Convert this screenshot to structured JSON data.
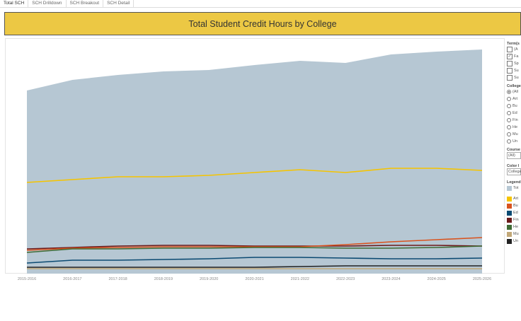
{
  "tabs": [
    "Total SCH",
    "SCH Drilldown",
    "SCH Breakout",
    "SCH Detail"
  ],
  "title": "Total Student Credit Hours by College",
  "filters": {
    "term": {
      "label": "Term(s",
      "items": [
        {
          "label": "(A",
          "checked": false
        },
        {
          "label": "Fa",
          "checked": true
        },
        {
          "label": "Sp",
          "checked": false
        },
        {
          "label": "Su",
          "checked": false
        },
        {
          "label": "Su",
          "checked": false
        }
      ]
    },
    "college": {
      "label": "College",
      "items": [
        {
          "label": "(All",
          "selected": true
        },
        {
          "label": "Art",
          "selected": false
        },
        {
          "label": "Bu",
          "selected": false
        },
        {
          "label": "Ed",
          "selected": false
        },
        {
          "label": "Fin",
          "selected": false
        },
        {
          "label": "He",
          "selected": false
        },
        {
          "label": "Mu",
          "selected": false
        },
        {
          "label": "Un",
          "selected": false
        }
      ]
    },
    "course": {
      "label": "Course",
      "value": "(All)"
    },
    "color": {
      "label": "Color l",
      "value": "College"
    }
  },
  "legend": {
    "label": "Legend",
    "items": [
      {
        "label": "Tot",
        "color": "#b6c7d3"
      },
      {
        "label": "Art",
        "color": "#f5c400"
      },
      {
        "label": "Bu",
        "color": "#d9531e"
      },
      {
        "label": "Ed",
        "color": "#0b4a72"
      },
      {
        "label": "Fin",
        "color": "#6b1a1a"
      },
      {
        "label": "He",
        "color": "#3f6b35"
      },
      {
        "label": "Mu",
        "color": "#c2a878"
      },
      {
        "label": "Un",
        "color": "#222222"
      }
    ]
  },
  "chart_data": {
    "type": "area",
    "categories": [
      "2015-2016",
      "2016-2017",
      "2017-2018",
      "2018-2019",
      "2019-2020",
      "2020-2021",
      "2021-2022",
      "2022-2023",
      "2023-2024",
      "2024-2025",
      "2025-2026"
    ],
    "y_axis_shown": false,
    "grid": false,
    "legend_placement": "right",
    "series": [
      {
        "name": "Tot",
        "kind": "area",
        "color": "#b6c7d3",
        "values": [
          259,
          274,
          281,
          286,
          288,
          295,
          301,
          298,
          310,
          314,
          317
        ]
      },
      {
        "name": "Art",
        "kind": "line",
        "color": "#f5c400",
        "values": [
          129,
          133,
          137,
          137,
          139,
          143,
          147,
          143,
          149,
          149,
          146
        ]
      },
      {
        "name": "Fin",
        "kind": "line",
        "color": "#6b1a1a",
        "values": [
          35,
          37,
          39,
          40,
          40,
          39,
          39,
          39,
          40,
          40,
          39
        ]
      },
      {
        "name": "Bu",
        "kind": "line",
        "color": "#d9531e",
        "values": [
          33,
          36,
          37,
          38,
          38,
          38,
          38,
          41,
          45,
          48,
          51
        ]
      },
      {
        "name": "He",
        "kind": "line",
        "color": "#3f6b35",
        "values": [
          30,
          35,
          35,
          36,
          36,
          37,
          37,
          36,
          36,
          37,
          39
        ]
      },
      {
        "name": "Ed",
        "kind": "line",
        "color": "#0b4a72",
        "values": [
          15,
          19,
          19,
          20,
          21,
          23,
          23,
          22,
          21,
          21,
          22
        ]
      },
      {
        "name": "Un",
        "kind": "line",
        "color": "#222222",
        "values": [
          9,
          9,
          9,
          9,
          9,
          9,
          10,
          11,
          11,
          11,
          11
        ]
      },
      {
        "name": "Mu",
        "kind": "line",
        "color": "#c2a878",
        "values": [
          7,
          7,
          7,
          7,
          7,
          7,
          7,
          7,
          7,
          7,
          7
        ]
      }
    ]
  }
}
